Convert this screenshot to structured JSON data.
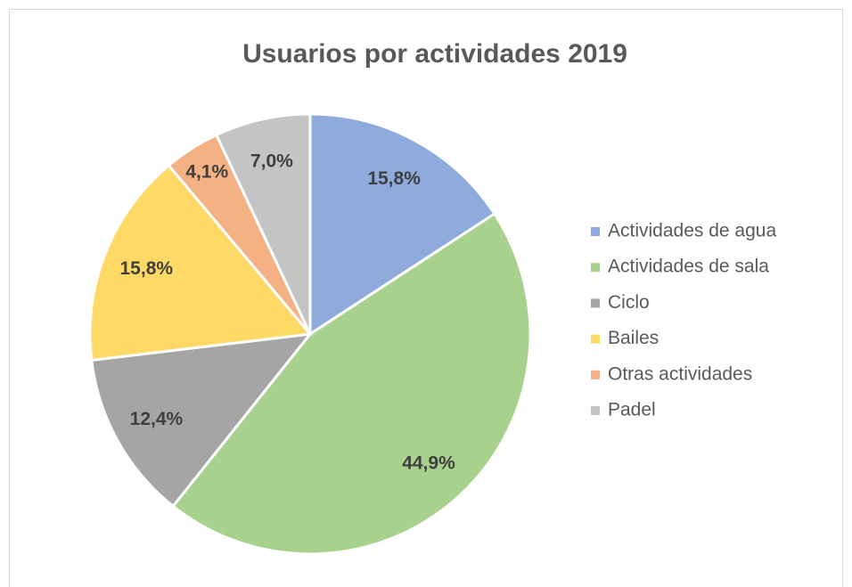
{
  "chart_data": {
    "type": "pie",
    "title": "Usuarios por actividades 2019",
    "categories": [
      "Actividades de agua",
      "Actividades de sala",
      "Ciclo",
      "Bailes",
      "Otras actividades",
      "Padel"
    ],
    "values": [
      15.8,
      44.9,
      12.4,
      15.8,
      4.1,
      7.0
    ],
    "value_labels": [
      "15,8%",
      "44,9%",
      "12,4%",
      "15,8%",
      "4,1%",
      "7,0%"
    ],
    "colors": [
      "#8faadc",
      "#a9d18e",
      "#a5a5a5",
      "#ffd966",
      "#f4b183",
      "#c4c4c4"
    ],
    "legend": "right"
  }
}
